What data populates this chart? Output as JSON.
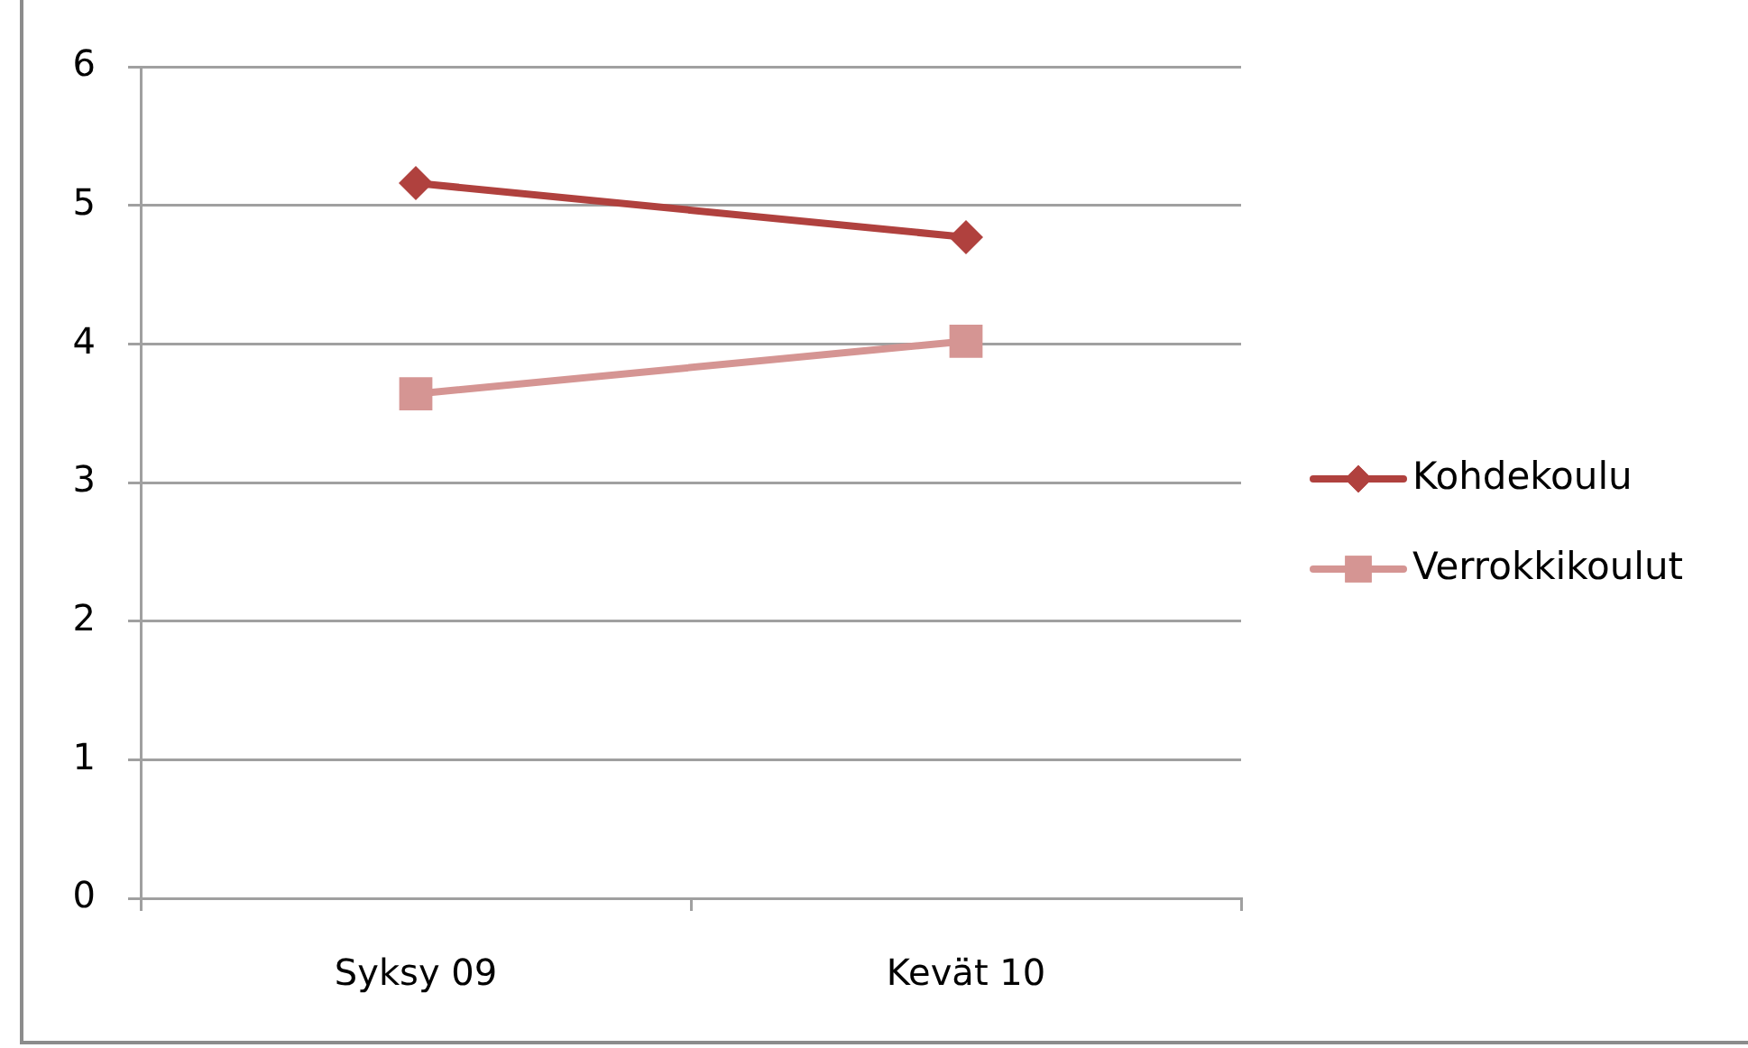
{
  "chart_data": {
    "type": "line",
    "categories": [
      "Syksy 09",
      "Kevät 10"
    ],
    "series": [
      {
        "name": "Kohdekoulu",
        "color": "#b0413e",
        "values": [
          5.16,
          4.77
        ],
        "marker": "diamond"
      },
      {
        "name": "Verrokkikoulut",
        "color": "#d59593",
        "values": [
          3.64,
          4.02
        ],
        "marker": "square"
      }
    ],
    "ylim": [
      0,
      6
    ],
    "yticks": [
      0,
      1,
      2,
      3,
      4,
      5,
      6
    ],
    "grid": "y",
    "legend": "right",
    "line_style": "solid"
  }
}
